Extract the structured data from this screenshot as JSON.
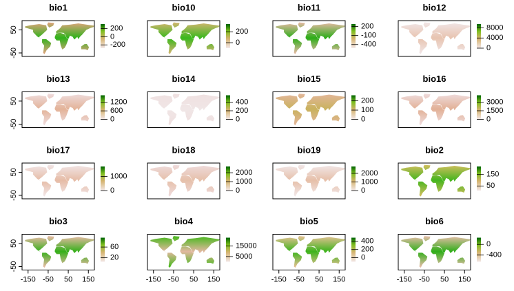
{
  "map_data": {
    "xlim": [
      -180,
      180
    ],
    "ylim": [
      -65,
      90
    ],
    "xticks": [
      -150,
      -50,
      50,
      150
    ],
    "yticks": [
      50,
      -50
    ],
    "panels": [
      {
        "title": "bio1",
        "legend_lim": [
          -280,
          310
        ],
        "legend_ticks": [
          200,
          0,
          -200
        ],
        "map_colors": [
          "#d9a47a",
          "#2fb21a"
        ]
      },
      {
        "title": "bio10",
        "legend_lim": [
          -100,
          340
        ],
        "legend_ticks": [
          200,
          0
        ],
        "map_colors": [
          "#cdb56e",
          "#3ab81c"
        ]
      },
      {
        "title": "bio11",
        "legend_lim": [
          -520,
          280
        ],
        "legend_ticks": [
          200,
          -100,
          -400
        ],
        "map_colors": [
          "#e0b9a0",
          "#2cad18"
        ]
      },
      {
        "title": "bio12",
        "legend_lim": [
          0,
          9500
        ],
        "legend_ticks": [
          8000,
          4000,
          0
        ],
        "map_colors": [
          "#f0e4e4",
          "#e8c4b0"
        ]
      },
      {
        "title": "bio13",
        "legend_lim": [
          0,
          1700
        ],
        "legend_ticks": [
          1200,
          600,
          0
        ],
        "map_colors": [
          "#eedada",
          "#e3b398"
        ]
      },
      {
        "title": "bio14",
        "legend_lim": [
          0,
          560
        ],
        "legend_ticks": [
          400,
          200,
          0
        ],
        "map_colors": [
          "#efe0e0",
          "#f0e6e6"
        ]
      },
      {
        "title": "bio15",
        "legend_lim": [
          0,
          260
        ],
        "legend_ticks": [
          200,
          100,
          0
        ],
        "map_colors": [
          "#e2b698",
          "#c9b25e"
        ]
      },
      {
        "title": "bio16",
        "legend_lim": [
          0,
          4200
        ],
        "legend_ticks": [
          3000,
          1500,
          0
        ],
        "map_colors": [
          "#eedada",
          "#e2b196"
        ]
      },
      {
        "title": "bio17",
        "legend_lim": [
          0,
          1700
        ],
        "legend_ticks": [
          1000,
          0
        ],
        "map_colors": [
          "#f1e4e4",
          "#e6bca6"
        ]
      },
      {
        "title": "bio18",
        "legend_lim": [
          0,
          2700
        ],
        "legend_ticks": [
          2000,
          1000,
          0
        ],
        "map_colors": [
          "#eedada",
          "#e6c0aa"
        ]
      },
      {
        "title": "bio19",
        "legend_lim": [
          0,
          2800
        ],
        "legend_ticks": [
          2000,
          1000,
          0
        ],
        "map_colors": [
          "#f1e6e6",
          "#e6bfa8"
        ]
      },
      {
        "title": "bio2",
        "legend_lim": [
          10,
          220
        ],
        "legend_ticks": [
          150,
          50
        ],
        "map_colors": [
          "#cdbe5c",
          "#45b51e"
        ]
      },
      {
        "title": "bio3",
        "legend_lim": [
          5,
          95
        ],
        "legend_ticks": [
          60,
          20
        ],
        "map_colors": [
          "#e3b9a0",
          "#35b01a"
        ]
      },
      {
        "title": "bio4",
        "legend_lim": [
          0,
          23000
        ],
        "legend_ticks": [
          15000,
          5000
        ],
        "map_colors": [
          "#4cb820",
          "#e2b8a0"
        ]
      },
      {
        "title": "bio5",
        "legend_lim": [
          -100,
          490
        ],
        "legend_ticks": [
          400,
          200,
          0
        ],
        "map_colors": [
          "#e0c090",
          "#3db41c"
        ]
      },
      {
        "title": "bio6",
        "legend_lim": [
          -650,
          250
        ],
        "legend_ticks": [
          0,
          -400
        ],
        "map_colors": [
          "#e2bca4",
          "#2fae18"
        ]
      }
    ]
  }
}
